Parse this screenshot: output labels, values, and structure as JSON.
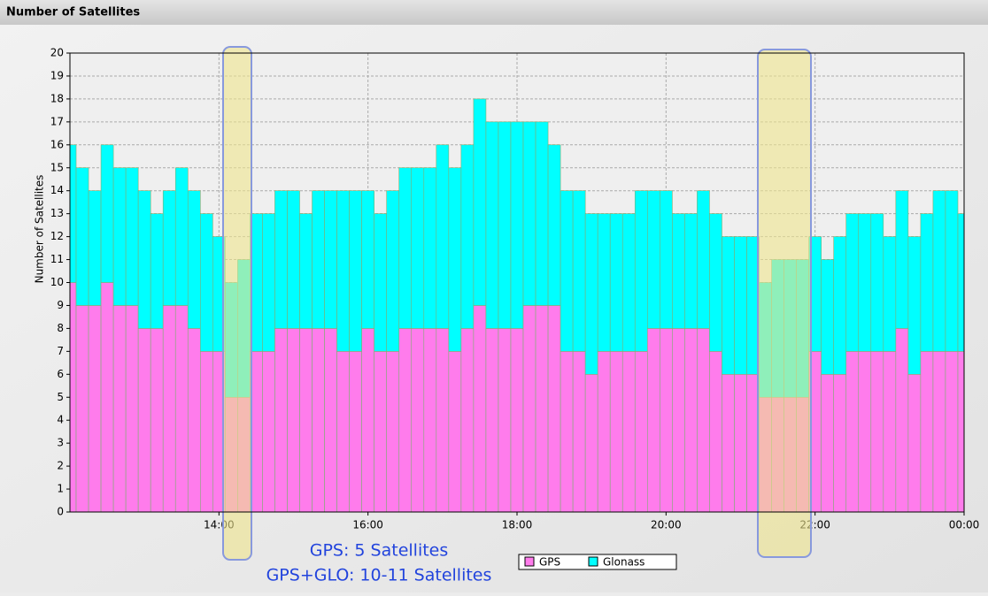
{
  "chart_data": {
    "type": "stacked-bar",
    "title": "Number of Satellites",
    "y_label": "Number of Satellites",
    "x": [
      "12:00",
      "12:05",
      "12:15",
      "12:25",
      "12:35",
      "12:45",
      "12:55",
      "13:05",
      "13:15",
      "13:25",
      "13:35",
      "13:45",
      "13:55",
      "14:05",
      "14:15",
      "14:25",
      "14:35",
      "14:45",
      "14:55",
      "15:05",
      "15:15",
      "15:25",
      "15:35",
      "15:45",
      "15:55",
      "16:05",
      "16:15",
      "16:25",
      "16:35",
      "16:45",
      "16:55",
      "17:05",
      "17:15",
      "17:25",
      "17:35",
      "17:45",
      "17:55",
      "18:05",
      "18:15",
      "18:25",
      "18:35",
      "18:45",
      "18:55",
      "19:05",
      "19:15",
      "19:25",
      "19:35",
      "19:45",
      "19:55",
      "20:05",
      "20:15",
      "20:25",
      "20:35",
      "20:45",
      "20:55",
      "21:05",
      "21:15",
      "21:25",
      "21:35",
      "21:45",
      "21:55",
      "22:05",
      "22:15",
      "22:25",
      "22:35",
      "22:45",
      "22:55",
      "23:05",
      "23:15",
      "23:25",
      "23:35",
      "23:45",
      "23:55"
    ],
    "series": [
      {
        "name": "GPS",
        "color": "#ff7cec",
        "values": [
          10,
          9,
          9,
          10,
          9,
          9,
          8,
          8,
          9,
          9,
          8,
          7,
          7,
          5,
          5,
          7,
          7,
          8,
          8,
          8,
          8,
          8,
          7,
          7,
          8,
          7,
          7,
          8,
          8,
          8,
          8,
          7,
          8,
          9,
          8,
          8,
          8,
          9,
          9,
          9,
          7,
          7,
          6,
          7,
          7,
          7,
          7,
          8,
          8,
          8,
          8,
          8,
          7,
          6,
          6,
          6,
          5,
          5,
          5,
          5,
          7,
          6,
          6,
          7,
          7,
          7,
          7,
          8,
          6,
          7,
          7,
          7,
          7
        ]
      },
      {
        "name": "Glonass",
        "color": "#00ffff",
        "values": [
          6,
          6,
          5,
          6,
          6,
          6,
          6,
          5,
          5,
          6,
          6,
          6,
          5,
          5,
          6,
          6,
          6,
          6,
          6,
          5,
          6,
          6,
          7,
          7,
          6,
          6,
          7,
          7,
          7,
          7,
          8,
          8,
          8,
          9,
          9,
          9,
          9,
          8,
          8,
          7,
          7,
          7,
          7,
          6,
          6,
          6,
          7,
          6,
          6,
          5,
          5,
          6,
          6,
          6,
          6,
          6,
          5,
          6,
          6,
          6,
          5,
          5,
          6,
          6,
          6,
          6,
          5,
          6,
          6,
          6,
          7,
          7,
          6
        ]
      }
    ],
    "xlim": [
      "12:00",
      "00:00"
    ],
    "xticks": [
      "14:00",
      "16:00",
      "18:00",
      "20:00",
      "22:00",
      "00:00"
    ],
    "ylim": [
      0,
      20
    ],
    "yticks": [
      0,
      1,
      2,
      3,
      4,
      5,
      6,
      7,
      8,
      9,
      10,
      11,
      12,
      13,
      14,
      15,
      16,
      17,
      18,
      19,
      20
    ],
    "grid": true,
    "annotations": [
      "GPS: 5 Satellites",
      "GPS+GLO: 10-11 Satellites"
    ]
  }
}
